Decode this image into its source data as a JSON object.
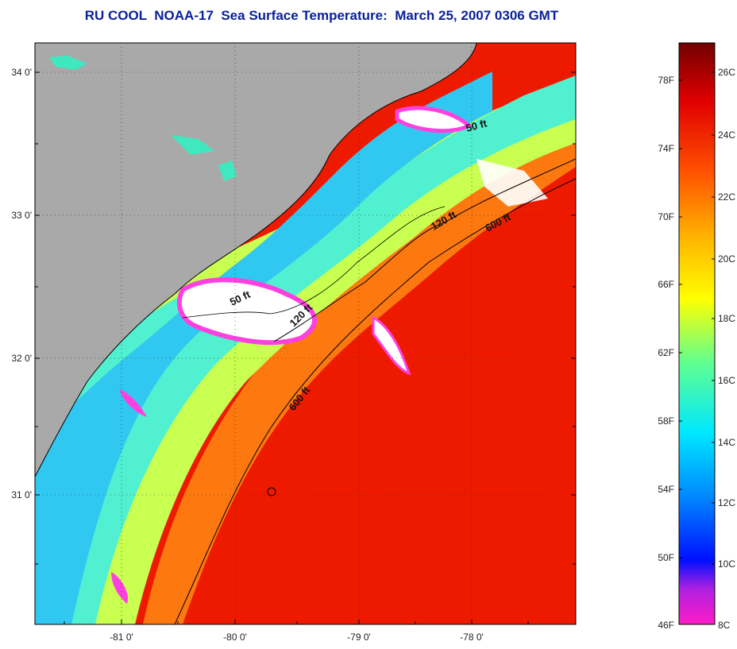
{
  "title": "RU COOL  NOAA-17  Sea Surface Temperature:  March 25, 2007 0306 GMT",
  "map": {
    "lat_ticks": [
      {
        "value": 34,
        "label": "34 0'"
      },
      {
        "value": 33,
        "label": "33 0'"
      },
      {
        "value": 32,
        "label": "32 0'"
      },
      {
        "value": 31,
        "label": "31 0'"
      }
    ],
    "lon_ticks": [
      {
        "value": -81,
        "label": "-81 0'"
      },
      {
        "value": -80,
        "label": "-80 0'"
      },
      {
        "value": -79,
        "label": "-79 0'"
      },
      {
        "value": -78,
        "label": "-78 0'"
      }
    ],
    "contour_labels": [
      {
        "text": "50 ft"
      },
      {
        "text": "120 ft"
      },
      {
        "text": "600 ft"
      },
      {
        "text": "50 ft"
      },
      {
        "text": "120 ft"
      },
      {
        "text": "600 ft"
      }
    ]
  },
  "colorbar": {
    "fahrenheit": [
      "78F",
      "74F",
      "70F",
      "66F",
      "62F",
      "58F",
      "54F",
      "50F",
      "46F"
    ],
    "celsius": [
      "26C",
      "24C",
      "22C",
      "20C",
      "18C",
      "16C",
      "14C",
      "12C",
      "10C",
      "8C"
    ],
    "colors": [
      "#ff00ff",
      "#9a20d0",
      "#0000ff",
      "#0090ff",
      "#00e8ff",
      "#80ff80",
      "#ffff00",
      "#ffa000",
      "#ff3000",
      "#e00000",
      "#700000"
    ]
  }
}
